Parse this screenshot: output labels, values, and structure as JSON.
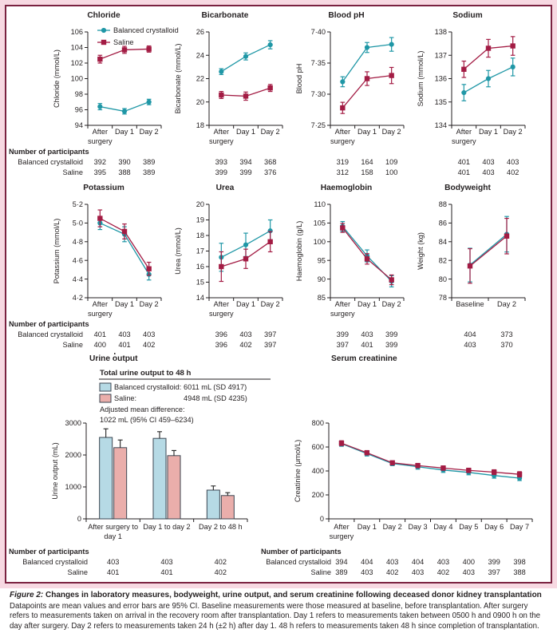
{
  "palette": {
    "balanced_line": "#1f97a6",
    "saline_line": "#a31c44",
    "bar_balanced_fill": "#b6dae5",
    "bar_saline_fill": "#eaaeab",
    "bar_outline": "#3b4652",
    "error_bar_dark": "#222222",
    "frame_border": "#7a2240",
    "page_background": "#f7d9e2",
    "text": "#231f20"
  },
  "series_names": [
    "Balanced crystalloid",
    "Saline"
  ],
  "participants_header": "Number of participants",
  "chart_data": [
    {
      "id": "chloride",
      "type": "line",
      "title": "Chloride",
      "ylabel": "Chloride (mmol/L)",
      "ylim": [
        94,
        106
      ],
      "yticks": [
        94,
        96,
        98,
        100,
        102,
        104,
        106
      ],
      "categories": [
        "After\nsurgery",
        "Day 1",
        "Day 2"
      ],
      "legend": true,
      "series": [
        {
          "name": "Balanced crystalloid",
          "values": [
            96.4,
            95.8,
            97.0
          ],
          "ci": [
            0.4,
            0.35,
            0.35
          ]
        },
        {
          "name": "Saline",
          "values": [
            102.5,
            103.7,
            103.8
          ],
          "ci": [
            0.5,
            0.45,
            0.4
          ]
        }
      ],
      "participants": [
        [
          392,
          390,
          389
        ],
        [
          395,
          388,
          389
        ]
      ]
    },
    {
      "id": "bicarbonate",
      "type": "line",
      "title": "Bicarbonate",
      "ylabel": "Bicarbonate (mmol/L)",
      "ylim": [
        18,
        26
      ],
      "yticks": [
        18,
        20,
        22,
        24,
        26
      ],
      "categories": [
        "After\nsurgery",
        "Day 1",
        "Day 2"
      ],
      "series": [
        {
          "name": "Balanced crystalloid",
          "values": [
            22.6,
            23.9,
            24.9
          ],
          "ci": [
            0.25,
            0.3,
            0.35
          ]
        },
        {
          "name": "Saline",
          "values": [
            20.6,
            20.5,
            21.2
          ],
          "ci": [
            0.3,
            0.35,
            0.3
          ]
        }
      ],
      "participants": [
        [
          393,
          394,
          368
        ],
        [
          399,
          399,
          376
        ]
      ]
    },
    {
      "id": "blood-ph",
      "type": "line",
      "title": "Blood pH",
      "ylabel": "Blood pH",
      "ylim": [
        7.25,
        7.4
      ],
      "yticks": [
        7.25,
        7.3,
        7.35,
        7.4
      ],
      "ytick_labels": [
        "7·25",
        "7·30",
        "7·35",
        "7·40"
      ],
      "categories": [
        "After\nsurgery",
        "Day 1",
        "Day 2"
      ],
      "series": [
        {
          "name": "Balanced crystalloid",
          "values": [
            7.32,
            7.375,
            7.38
          ],
          "ci": [
            0.008,
            0.008,
            0.011
          ]
        },
        {
          "name": "Saline",
          "values": [
            7.278,
            7.325,
            7.33
          ],
          "ci": [
            0.009,
            0.011,
            0.013
          ]
        }
      ],
      "participants": [
        [
          319,
          164,
          109
        ],
        [
          312,
          158,
          100
        ]
      ]
    },
    {
      "id": "sodium",
      "type": "line",
      "title": "Sodium",
      "ylabel": "Sodium (mmol/L)",
      "ylim": [
        134,
        138
      ],
      "yticks": [
        134,
        135,
        136,
        137,
        138
      ],
      "categories": [
        "After\nsurgery",
        "Day 1",
        "Day 2"
      ],
      "series": [
        {
          "name": "Balanced crystalloid",
          "values": [
            135.4,
            136.0,
            136.5
          ],
          "ci": [
            0.35,
            0.35,
            0.38
          ]
        },
        {
          "name": "Saline",
          "values": [
            136.4,
            137.3,
            137.4
          ],
          "ci": [
            0.35,
            0.38,
            0.4
          ]
        }
      ],
      "participants": [
        [
          401,
          403,
          403
        ],
        [
          401,
          403,
          402
        ]
      ]
    },
    {
      "id": "potassium",
      "type": "line",
      "title": "Potassium",
      "ylabel": "Potassium (mmol/L)",
      "ylim": [
        4.2,
        5.2
      ],
      "yticks": [
        4.2,
        4.4,
        4.6,
        4.8,
        5.0,
        5.2
      ],
      "ytick_labels": [
        "4·2",
        "4·4",
        "4·6",
        "4·8",
        "5·0",
        "5·2"
      ],
      "categories": [
        "After\nsurgery",
        "Day 1",
        "Day 2"
      ],
      "series": [
        {
          "name": "Balanced crystalloid",
          "values": [
            5.0,
            4.88,
            4.45
          ],
          "ci": [
            0.07,
            0.08,
            0.06
          ]
        },
        {
          "name": "Saline",
          "values": [
            5.05,
            4.91,
            4.51
          ],
          "ci": [
            0.09,
            0.08,
            0.07
          ]
        }
      ],
      "participants": [
        [
          401,
          403,
          403
        ],
        [
          400,
          401,
          402
        ]
      ]
    },
    {
      "id": "urea",
      "type": "line",
      "title": "Urea",
      "ylabel": "Urea (mmol/L)",
      "ylim": [
        14,
        20
      ],
      "yticks": [
        14,
        15,
        16,
        17,
        18,
        19,
        20
      ],
      "categories": [
        "After\nsurgery",
        "Day 1",
        "Day 2"
      ],
      "series": [
        {
          "name": "Balanced crystalloid",
          "values": [
            16.6,
            17.4,
            18.3
          ],
          "ci": [
            0.9,
            0.75,
            0.7
          ]
        },
        {
          "name": "Saline",
          "values": [
            16.0,
            16.5,
            17.6
          ],
          "ci": [
            0.95,
            0.62,
            0.65
          ]
        }
      ],
      "participants": [
        [
          396,
          403,
          397
        ],
        [
          396,
          402,
          397
        ]
      ]
    },
    {
      "id": "haemoglobin",
      "type": "line",
      "title": "Haemoglobin",
      "ylabel": "Haemoglobin (g/L)",
      "ylim": [
        85,
        110
      ],
      "yticks": [
        85,
        90,
        95,
        100,
        105,
        110
      ],
      "categories": [
        "After\nsurgery",
        "Day 1",
        "Day 2"
      ],
      "series": [
        {
          "name": "Balanced crystalloid",
          "values": [
            104.1,
            96.2,
            89.4
          ],
          "ci": [
            1.3,
            1.6,
            1.5
          ]
        },
        {
          "name": "Saline",
          "values": [
            103.7,
            95.4,
            89.8
          ],
          "ci": [
            1.2,
            1.4,
            1.3
          ]
        }
      ],
      "participants": [
        [
          399,
          403,
          399
        ],
        [
          397,
          401,
          399
        ]
      ]
    },
    {
      "id": "bodyweight",
      "type": "line",
      "title": "Bodyweight",
      "ylabel": "Weight (kg)",
      "ylim": [
        78,
        88
      ],
      "yticks": [
        78,
        80,
        82,
        84,
        86,
        88
      ],
      "categories": [
        "Baseline",
        "Day 2"
      ],
      "series": [
        {
          "name": "Balanced crystalloid",
          "values": [
            81.5,
            84.8
          ],
          "ci": [
            1.8,
            1.9
          ]
        },
        {
          "name": "Saline",
          "values": [
            81.4,
            84.6
          ],
          "ci": [
            1.85,
            1.9
          ]
        }
      ],
      "participants": [
        [
          404,
          373
        ],
        [
          403,
          370
        ]
      ]
    },
    {
      "id": "urine-output",
      "type": "bar",
      "title": "Urine output",
      "ylabel": "Urine output (mL)",
      "ylim": [
        0,
        3000
      ],
      "yticks": [
        0,
        1000,
        2000,
        3000
      ],
      "categories": [
        "After surgery to\nday 1",
        "Day 1 to day 2",
        "Day 2 to 48 h"
      ],
      "stats": {
        "subtitle": "Total urine output to 48 h",
        "balanced_label": "Balanced crystalloid:",
        "balanced_value": "6011 mL (SD 4917)",
        "saline_label": "Saline:",
        "saline_value": "4948 mL (SD 4235)",
        "adjusted_label": "Adjusted mean difference:",
        "adjusted_value": "1022 mL (95% CI 459–6234)"
      },
      "series": [
        {
          "name": "Balanced crystalloid",
          "values": [
            2550,
            2520,
            900
          ],
          "err_up": [
            270,
            210,
            130
          ]
        },
        {
          "name": "Saline",
          "values": [
            2230,
            1980,
            730
          ],
          "err_up": [
            240,
            160,
            90
          ]
        }
      ],
      "participants": [
        [
          403,
          403,
          402
        ],
        [
          401,
          401,
          402
        ]
      ]
    },
    {
      "id": "serum-creatinine",
      "type": "line",
      "title": "Serum creatinine",
      "ylabel": "Creatinine (μmol/L)",
      "ylim": [
        0,
        800
      ],
      "yticks": [
        0,
        200,
        400,
        600,
        800
      ],
      "categories": [
        "After\nsurgery",
        "Day 1",
        "Day 2",
        "Day 3",
        "Day 4",
        "Day 5",
        "Day 6",
        "Day 7"
      ],
      "series": [
        {
          "name": "Balanced crystalloid",
          "values": [
            628,
            545,
            462,
            435,
            408,
            388,
            362,
            340
          ],
          "ci": [
            22,
            20,
            18,
            20,
            20,
            20,
            22,
            20
          ]
        },
        {
          "name": "Saline",
          "values": [
            632,
            552,
            468,
            445,
            424,
            405,
            390,
            372
          ],
          "ci": [
            20,
            18,
            16,
            18,
            18,
            18,
            20,
            22
          ]
        }
      ],
      "participants": [
        [
          394,
          404,
          403,
          404,
          403,
          400,
          399,
          398
        ],
        [
          389,
          403,
          402,
          403,
          402,
          403,
          397,
          388
        ]
      ]
    }
  ],
  "caption": {
    "label": "Figure 2:",
    "title": "Changes in laboratory measures, bodyweight, urine output, and serum creatinine following deceased donor kidney transplantation",
    "body": "Datapoints are mean values and error bars are 95% CI. Baseline measurements were those measured at baseline, before transplantation. After surgery refers to measurements taken on arrival in the recovery room after transplantation. Day 1 refers to measurements taken between 0500 h and 0900 h on the day after surgery. Day 2 refers to measurements taken 24 h (±2 h) after day 1. 48 h refers to measurements taken 48 h since completion of transplantation."
  }
}
